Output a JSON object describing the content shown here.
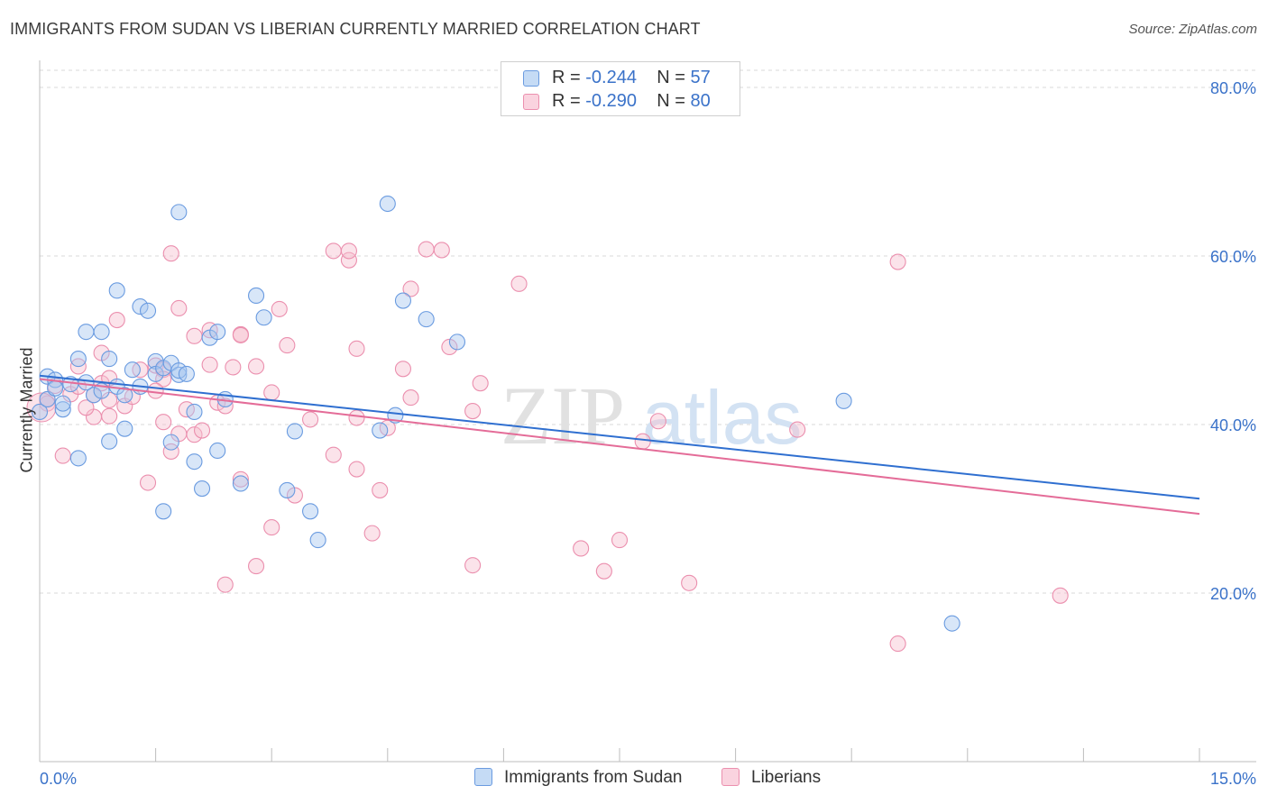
{
  "title": "IMMIGRANTS FROM SUDAN VS LIBERIAN CURRENTLY MARRIED CORRELATION CHART",
  "source": "Source: ZipAtlas.com",
  "watermark": {
    "zip": "ZIP",
    "atlas": "atlas"
  },
  "colors": {
    "blue_fill": "#a9c8f0",
    "blue_stroke": "#6a9be0",
    "blue_line": "#2f6fd0",
    "pink_fill": "#f7c0d0",
    "pink_stroke": "#eb8fae",
    "pink_line": "#e46c98",
    "accent_text": "#3a72c9",
    "grid": "#d8d8d8"
  },
  "legend": {
    "rows": [
      {
        "r_label": "R =",
        "r_value": "-0.244",
        "n_label": "N =",
        "n_value": "57",
        "series": "blue"
      },
      {
        "r_label": "R =",
        "r_value": "-0.290",
        "n_label": "N =",
        "n_value": "80",
        "series": "pink"
      }
    ]
  },
  "bottom_legend": [
    {
      "label": "Immigrants from Sudan",
      "series": "blue"
    },
    {
      "label": "Liberians",
      "series": "pink"
    }
  ],
  "chart_data": {
    "type": "scatter",
    "title": "IMMIGRANTS FROM SUDAN VS LIBERIAN CURRENTLY MARRIED CORRELATION CHART",
    "xlabel": "",
    "ylabel": "Currently Married",
    "xlim": [
      0,
      15
    ],
    "ylim": [
      0,
      80
    ],
    "x_tick_labels": [
      "0.0%",
      "15.0%"
    ],
    "y_ticks": [
      20,
      40,
      60,
      80
    ],
    "y_tick_labels": [
      "20.0%",
      "40.0%",
      "60.0%",
      "80.0%"
    ],
    "grid": true,
    "series": [
      {
        "name": "Immigrants from Sudan",
        "color": "blue",
        "r": -0.244,
        "n": 57,
        "trend": {
          "x": [
            0,
            15
          ],
          "y": [
            45.8,
            31.2
          ]
        },
        "points": [
          [
            0.0,
            41.5
          ],
          [
            0.1,
            45.7
          ],
          [
            0.1,
            43.0
          ],
          [
            0.2,
            45.3
          ],
          [
            0.3,
            41.8
          ],
          [
            0.2,
            44.3
          ],
          [
            0.5,
            47.8
          ],
          [
            0.5,
            36.0
          ],
          [
            0.6,
            51.0
          ],
          [
            0.7,
            43.5
          ],
          [
            0.8,
            51.0
          ],
          [
            0.9,
            47.8
          ],
          [
            0.9,
            38.0
          ],
          [
            1.0,
            44.5
          ],
          [
            1.0,
            55.9
          ],
          [
            1.1,
            39.5
          ],
          [
            1.3,
            54.0
          ],
          [
            1.3,
            44.5
          ],
          [
            1.5,
            47.5
          ],
          [
            1.5,
            46.0
          ],
          [
            1.4,
            53.5
          ],
          [
            1.6,
            46.7
          ],
          [
            1.7,
            47.3
          ],
          [
            1.8,
            45.9
          ],
          [
            1.6,
            29.7
          ],
          [
            1.8,
            46.4
          ],
          [
            1.9,
            46.0
          ],
          [
            2.0,
            35.6
          ],
          [
            2.0,
            41.5
          ],
          [
            1.7,
            37.9
          ],
          [
            1.8,
            65.2
          ],
          [
            2.1,
            32.4
          ],
          [
            2.2,
            50.3
          ],
          [
            2.3,
            51.0
          ],
          [
            2.3,
            36.9
          ],
          [
            2.4,
            43.0
          ],
          [
            2.6,
            33.0
          ],
          [
            2.8,
            55.3
          ],
          [
            2.9,
            52.7
          ],
          [
            3.2,
            32.2
          ],
          [
            3.3,
            39.2
          ],
          [
            3.5,
            29.7
          ],
          [
            3.6,
            26.3
          ],
          [
            4.4,
            39.3
          ],
          [
            4.5,
            66.2
          ],
          [
            4.6,
            41.1
          ],
          [
            4.7,
            54.7
          ],
          [
            5.0,
            52.5
          ],
          [
            5.4,
            49.8
          ],
          [
            10.4,
            42.8
          ],
          [
            11.8,
            16.4
          ],
          [
            0.4,
            44.8
          ],
          [
            0.3,
            42.5
          ],
          [
            0.8,
            44.0
          ],
          [
            1.2,
            46.5
          ],
          [
            0.6,
            45.0
          ],
          [
            1.1,
            43.5
          ]
        ]
      },
      {
        "name": "Liberians",
        "color": "pink",
        "r": -0.29,
        "n": 80,
        "trend": {
          "x": [
            0,
            15
          ],
          "y": [
            45.4,
            29.4
          ]
        },
        "points": [
          [
            0.1,
            43.0
          ],
          [
            0.1,
            42.5
          ],
          [
            0.2,
            44.6
          ],
          [
            0.3,
            36.3
          ],
          [
            0.4,
            43.6
          ],
          [
            0.5,
            44.5
          ],
          [
            0.5,
            46.9
          ],
          [
            0.7,
            40.9
          ],
          [
            0.7,
            43.5
          ],
          [
            0.8,
            48.5
          ],
          [
            0.8,
            44.9
          ],
          [
            0.9,
            42.9
          ],
          [
            0.9,
            41.0
          ],
          [
            1.0,
            52.4
          ],
          [
            1.1,
            42.2
          ],
          [
            1.2,
            43.3
          ],
          [
            1.3,
            46.5
          ],
          [
            1.4,
            33.1
          ],
          [
            1.5,
            47.0
          ],
          [
            1.6,
            46.5
          ],
          [
            1.6,
            40.3
          ],
          [
            1.6,
            45.4
          ],
          [
            1.7,
            36.8
          ],
          [
            1.7,
            60.3
          ],
          [
            1.8,
            38.9
          ],
          [
            1.8,
            53.8
          ],
          [
            1.9,
            41.8
          ],
          [
            2.0,
            50.5
          ],
          [
            2.0,
            38.8
          ],
          [
            2.1,
            39.3
          ],
          [
            2.2,
            47.1
          ],
          [
            2.2,
            51.2
          ],
          [
            2.3,
            42.6
          ],
          [
            2.4,
            42.2
          ],
          [
            2.4,
            21.0
          ],
          [
            2.5,
            46.8
          ],
          [
            2.6,
            33.5
          ],
          [
            2.6,
            50.7
          ],
          [
            2.6,
            50.6
          ],
          [
            2.8,
            23.2
          ],
          [
            2.8,
            46.9
          ],
          [
            3.0,
            27.8
          ],
          [
            3.0,
            43.8
          ],
          [
            3.1,
            53.7
          ],
          [
            3.2,
            49.4
          ],
          [
            3.3,
            31.6
          ],
          [
            3.5,
            40.6
          ],
          [
            3.8,
            60.6
          ],
          [
            3.8,
            36.4
          ],
          [
            4.0,
            59.5
          ],
          [
            4.0,
            60.6
          ],
          [
            4.1,
            34.7
          ],
          [
            4.1,
            40.8
          ],
          [
            4.1,
            49.0
          ],
          [
            4.3,
            27.1
          ],
          [
            4.4,
            32.2
          ],
          [
            4.5,
            39.6
          ],
          [
            4.7,
            46.6
          ],
          [
            4.8,
            43.2
          ],
          [
            4.8,
            56.1
          ],
          [
            5.0,
            60.8
          ],
          [
            5.2,
            60.7
          ],
          [
            5.3,
            49.2
          ],
          [
            5.6,
            41.6
          ],
          [
            5.6,
            23.3
          ],
          [
            5.7,
            44.9
          ],
          [
            6.2,
            56.7
          ],
          [
            7.0,
            25.3
          ],
          [
            7.3,
            22.6
          ],
          [
            7.5,
            26.3
          ],
          [
            7.8,
            38.0
          ],
          [
            8.0,
            40.4
          ],
          [
            8.4,
            21.2
          ],
          [
            9.8,
            39.4
          ],
          [
            11.1,
            59.3
          ],
          [
            11.1,
            14.0
          ],
          [
            13.2,
            19.7
          ],
          [
            0.6,
            42.0
          ],
          [
            1.5,
            44.0
          ],
          [
            0.9,
            45.5
          ]
        ]
      }
    ]
  }
}
